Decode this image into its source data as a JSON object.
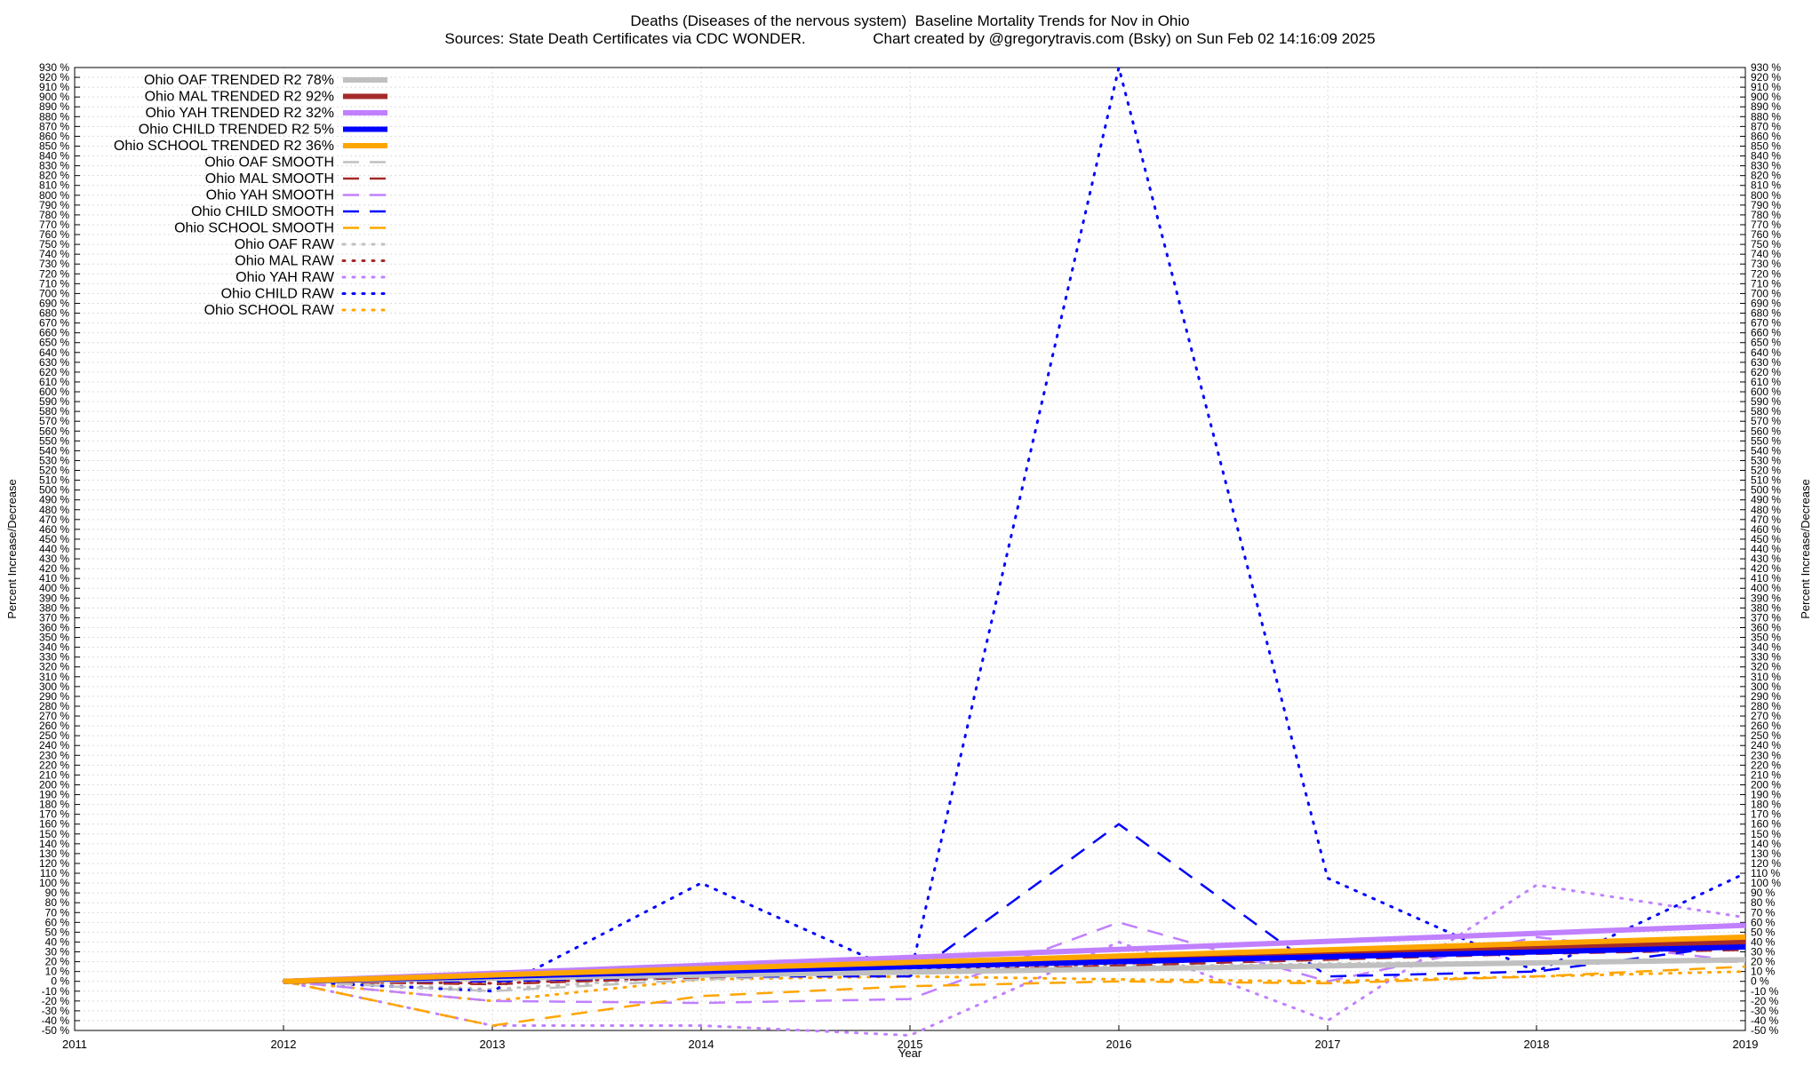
{
  "title_line1": "Deaths (Diseases of the nervous system)  Baseline Mortality Trends for Nov in Ohio",
  "title_line2": "Sources: State Death Certificates via CDC WONDER.                Chart created by @gregorytravis.com (Bsky) on Sun Feb 02 14:16:09 2025",
  "chart_data": {
    "type": "line",
    "xlabel": "Year",
    "ylabel_left": "Percent Increase/Decrease",
    "ylabel_right": "Percent Increase/Decrease",
    "xlim": [
      2011,
      2019
    ],
    "ylim": [
      -50,
      930
    ],
    "x_ticks": [
      "2011",
      "2012",
      "2013",
      "2014",
      "2015",
      "2016",
      "2017",
      "2018",
      "2019"
    ],
    "y_tick_step": 10,
    "y_tick_suffix": " %",
    "grid": true,
    "legend_position": "top-left",
    "series": [
      {
        "name": "Ohio OAF TRENDED R2  78%",
        "style": "trend",
        "color": "#c0c0c0",
        "x": [
          2012,
          2019
        ],
        "y": [
          0,
          22
        ]
      },
      {
        "name": "Ohio MAL TRENDED R2  92%",
        "style": "trend",
        "color": "#a52a2a",
        "x": [
          2012,
          2019
        ],
        "y": [
          0,
          40
        ]
      },
      {
        "name": "Ohio YAH TRENDED R2  32%",
        "style": "trend",
        "color": "#c080ff",
        "x": [
          2012,
          2019
        ],
        "y": [
          0,
          57
        ]
      },
      {
        "name": "Ohio CHILD TRENDED R2   5%",
        "style": "trend",
        "color": "#0000ff",
        "x": [
          2012,
          2019
        ],
        "y": [
          0,
          35
        ]
      },
      {
        "name": "Ohio SCHOOL TRENDED R2  36%",
        "style": "trend",
        "color": "#ffa500",
        "x": [
          2012,
          2019
        ],
        "y": [
          0,
          45
        ]
      },
      {
        "name": "Ohio OAF SMOOTH",
        "style": "smooth",
        "color": "#c0c0c0",
        "x": [
          2012,
          2013,
          2014,
          2015,
          2016,
          2017,
          2018,
          2019
        ],
        "y": [
          0,
          -10,
          2,
          8,
          12,
          15,
          18,
          20
        ]
      },
      {
        "name": "Ohio MAL SMOOTH",
        "style": "smooth",
        "color": "#a52a2a",
        "x": [
          2012,
          2013,
          2014,
          2015,
          2016,
          2017,
          2018,
          2019
        ],
        "y": [
          0,
          -3,
          4,
          10,
          16,
          22,
          28,
          32
        ]
      },
      {
        "name": "Ohio YAH SMOOTH",
        "style": "smooth",
        "color": "#c080ff",
        "x": [
          2012,
          2013,
          2014,
          2015,
          2016,
          2017,
          2018,
          2019
        ],
        "y": [
          0,
          -20,
          -22,
          -18,
          60,
          0,
          45,
          20
        ]
      },
      {
        "name": "Ohio CHILD SMOOTH",
        "style": "smooth",
        "color": "#0000ff",
        "x": [
          2012,
          2013,
          2014,
          2015,
          2016,
          2017,
          2018,
          2019
        ],
        "y": [
          0,
          0,
          5,
          5,
          160,
          5,
          10,
          38
        ]
      },
      {
        "name": "Ohio SCHOOL SMOOTH",
        "style": "smooth",
        "color": "#ffa500",
        "x": [
          2012,
          2013,
          2014,
          2015,
          2016,
          2017,
          2018,
          2019
        ],
        "y": [
          0,
          -45,
          -15,
          -5,
          0,
          -2,
          5,
          15
        ]
      },
      {
        "name": "Ohio OAF RAW",
        "style": "raw",
        "color": "#c0c0c0",
        "x": [
          2012,
          2013,
          2014,
          2015,
          2016,
          2017,
          2018,
          2019
        ],
        "y": [
          0,
          -8,
          5,
          12,
          15,
          18,
          20,
          22
        ]
      },
      {
        "name": "Ohio MAL RAW",
        "style": "raw",
        "color": "#a52a2a",
        "x": [
          2012,
          2013,
          2014,
          2015,
          2016,
          2017,
          2018,
          2019
        ],
        "y": [
          0,
          -2,
          5,
          12,
          18,
          25,
          30,
          35
        ]
      },
      {
        "name": "Ohio YAH RAW",
        "style": "raw",
        "color": "#c080ff",
        "x": [
          2012,
          2013,
          2014,
          2015,
          2016,
          2017,
          2018,
          2019
        ],
        "y": [
          0,
          -45,
          -45,
          -55,
          40,
          -40,
          98,
          65
        ]
      },
      {
        "name": "Ohio CHILD RAW",
        "style": "raw",
        "color": "#0000ff",
        "x": [
          2012,
          2013,
          2014,
          2015,
          2016,
          2017,
          2018,
          2019
        ],
        "y": [
          0,
          -10,
          100,
          5,
          930,
          105,
          10,
          110
        ]
      },
      {
        "name": "Ohio SCHOOL RAW",
        "style": "raw",
        "color": "#ffa500",
        "x": [
          2012,
          2013,
          2014,
          2015,
          2016,
          2017,
          2018,
          2019
        ],
        "y": [
          0,
          -20,
          2,
          5,
          2,
          0,
          5,
          10
        ]
      }
    ]
  }
}
